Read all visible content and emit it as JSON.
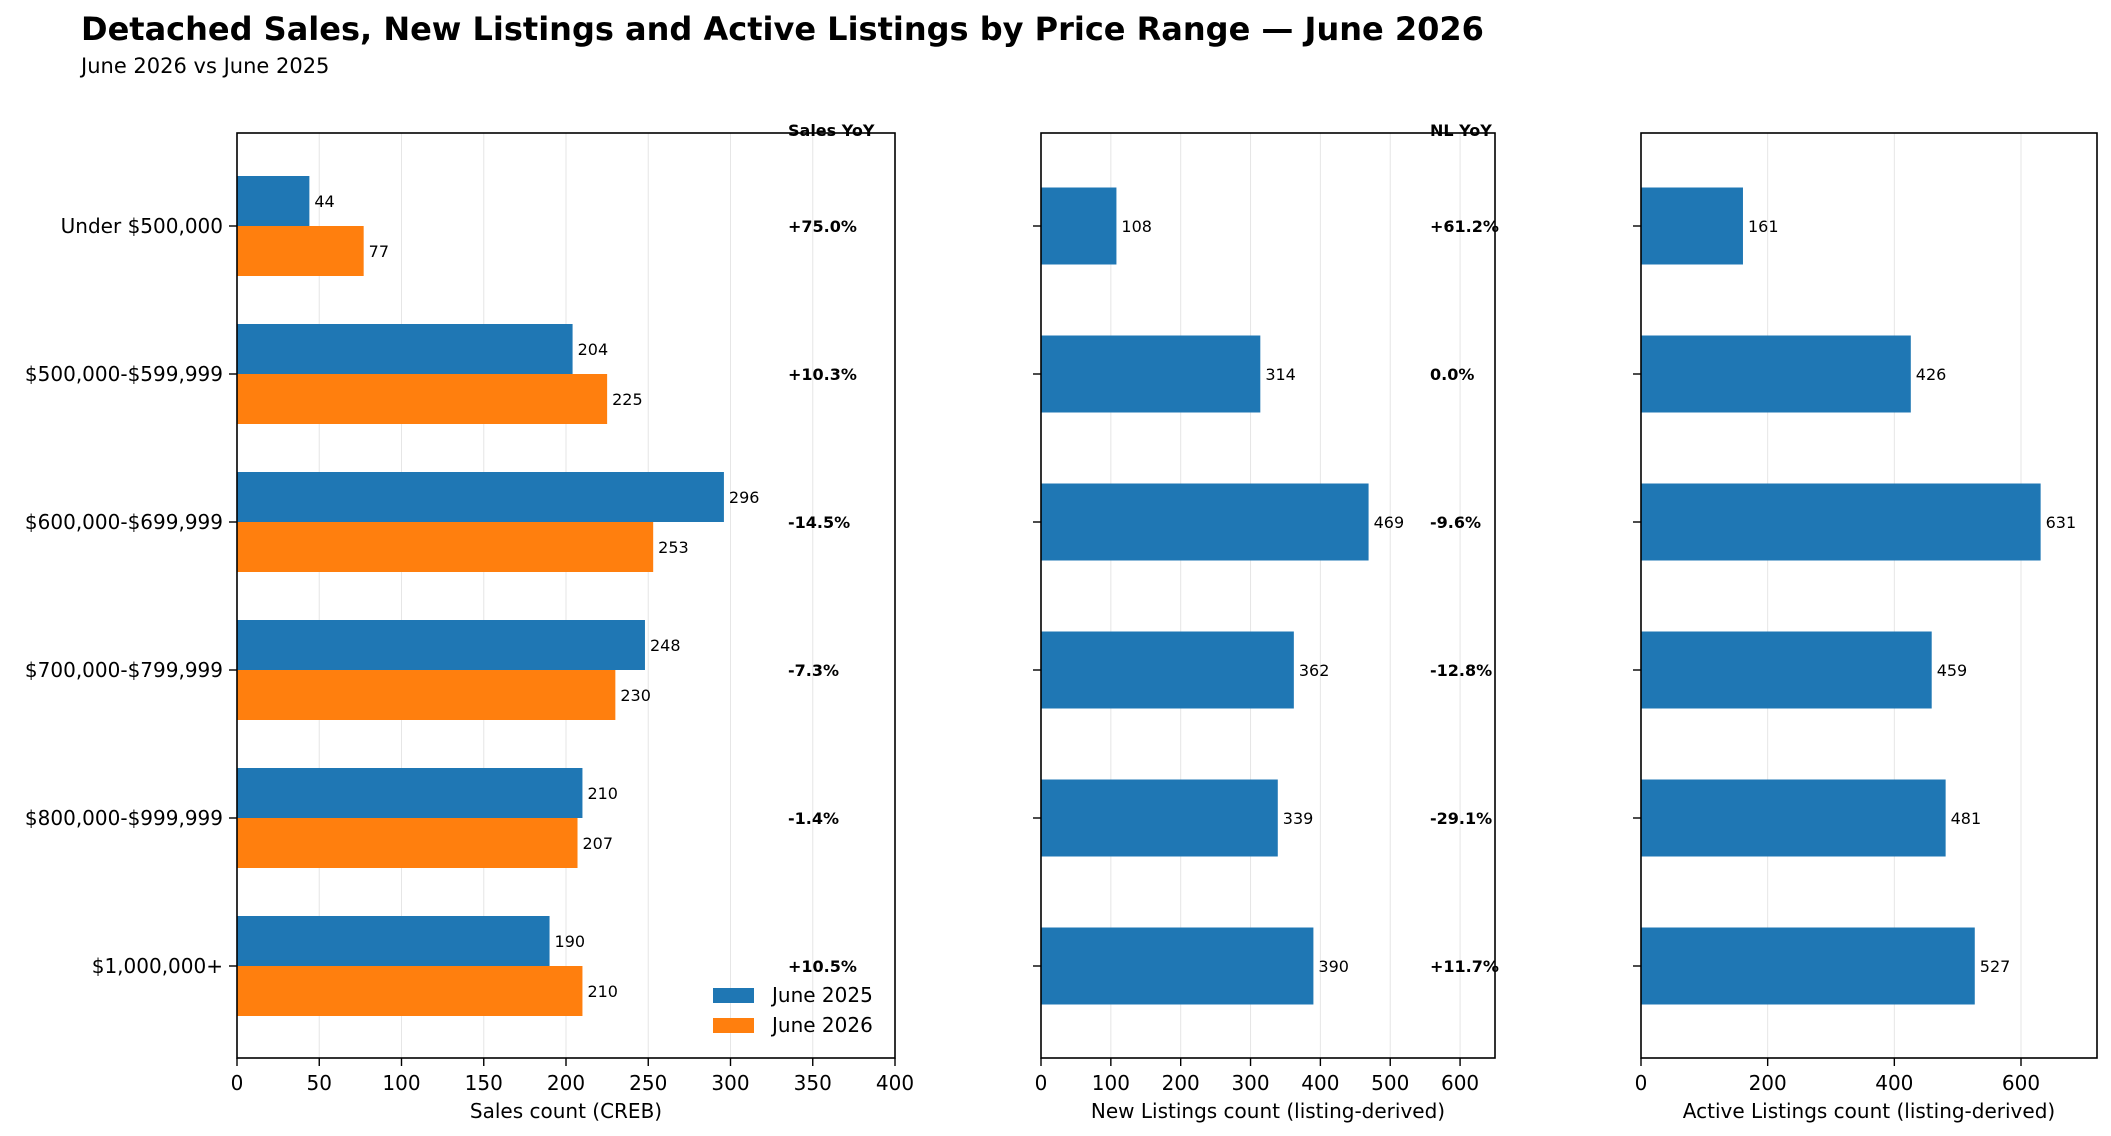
{
  "title": "Detached Sales, New Listings and Active Listings by Price Range — June 2026",
  "subtitle": "June 2026 vs June 2025",
  "colors": {
    "june_2025": "#1f77b4",
    "june_2026": "#ff7f0e",
    "grid": "#e6e6e6"
  },
  "chart_data": [
    {
      "type": "bar",
      "orientation": "horizontal",
      "categories": [
        "Under $500,000",
        "$500,000-$599,999",
        "$600,000-$699,999",
        "$700,000-$799,999",
        "$800,000-$999,999",
        "$1,000,000+"
      ],
      "series": [
        {
          "name": "June 2025",
          "values": [
            44,
            204,
            296,
            248,
            210,
            190
          ]
        },
        {
          "name": "June 2026",
          "values": [
            77,
            225,
            253,
            230,
            207,
            210
          ]
        }
      ],
      "xlabel": "Sales count (CREB)",
      "xlim": [
        0,
        400
      ],
      "xticks": [
        0,
        50,
        100,
        150,
        200,
        250,
        300,
        350,
        400
      ],
      "grid": "vertical",
      "legend": "bottom-right",
      "annotation_header": "Sales YoY",
      "annotations": [
        "+75.0%",
        "+10.3%",
        "-14.5%",
        "-7.3%",
        "-1.4%",
        "+10.5%"
      ]
    },
    {
      "type": "bar",
      "orientation": "horizontal",
      "categories": [
        "Under $500,000",
        "$500,000-$599,999",
        "$600,000-$699,999",
        "$700,000-$799,999",
        "$800,000-$999,999",
        "$1,000,000+"
      ],
      "values": [
        108,
        314,
        469,
        362,
        339,
        390
      ],
      "xlabel": "New Listings count (listing-derived)",
      "xlim": [
        0,
        650
      ],
      "xticks": [
        0,
        100,
        200,
        300,
        400,
        500,
        600
      ],
      "grid": "vertical",
      "annotation_header": "NL YoY",
      "annotations": [
        "+61.2%",
        "0.0%",
        "-9.6%",
        "-12.8%",
        "-29.1%",
        "+11.7%"
      ]
    },
    {
      "type": "bar",
      "orientation": "horizontal",
      "categories": [
        "Under $500,000",
        "$500,000-$599,999",
        "$600,000-$699,999",
        "$700,000-$799,999",
        "$800,000-$999,999",
        "$1,000,000+"
      ],
      "values": [
        161,
        426,
        631,
        459,
        481,
        527
      ],
      "xlabel": "Active Listings count (listing-derived)",
      "xlim": [
        0,
        720
      ],
      "xticks": [
        0,
        200,
        400,
        600
      ],
      "grid": "vertical"
    }
  ]
}
